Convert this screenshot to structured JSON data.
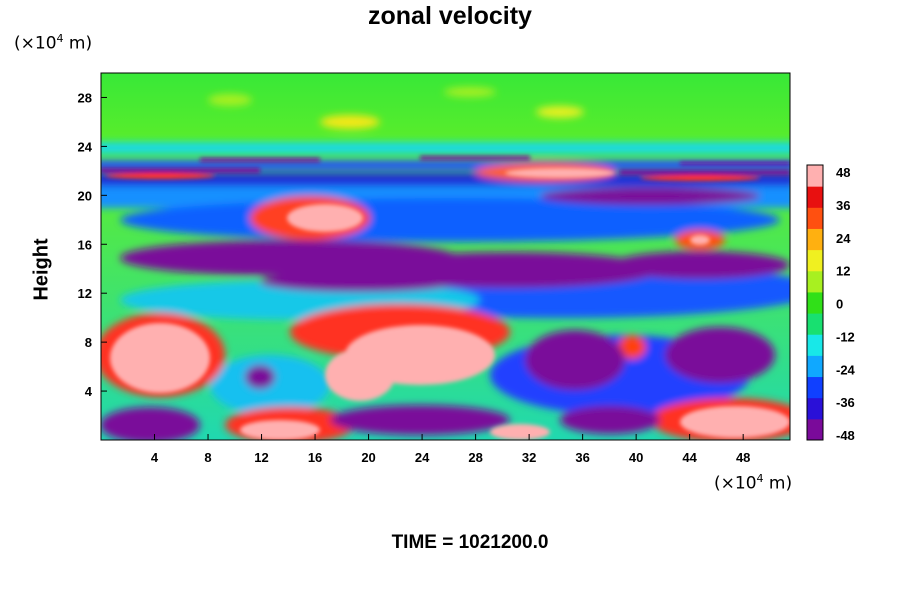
{
  "chart_data": {
    "type": "heatmap",
    "title": "zonal velocity",
    "ylabel": "Height",
    "xlabel": "",
    "x_unit": {
      "prefix": "(×10",
      "exp": "4",
      "suffix": " m)"
    },
    "y_unit": {
      "prefix": "(×10",
      "exp": "4",
      "suffix": " m)"
    },
    "x_ticks": [
      4,
      8,
      12,
      16,
      20,
      24,
      28,
      32,
      36,
      40,
      44,
      48
    ],
    "y_ticks": [
      4,
      8,
      12,
      16,
      20,
      24,
      28
    ],
    "xlim": [
      0,
      51.5
    ],
    "ylim": [
      0,
      30
    ],
    "colorbar": {
      "ticks": [
        48,
        36,
        24,
        12,
        0,
        -12,
        -24,
        -36,
        -48
      ],
      "range": [
        -48,
        48
      ],
      "colors": [
        "#7a0a9a",
        "#2a10d8",
        "#1040ff",
        "#10a8ff",
        "#18e8e8",
        "#18e070",
        "#30e018",
        "#a8f020",
        "#f0f020",
        "#ffb010",
        "#ff5010",
        "#e81010",
        "#ffb0b0"
      ]
    },
    "annotation": "TIME = 1021200.0"
  }
}
